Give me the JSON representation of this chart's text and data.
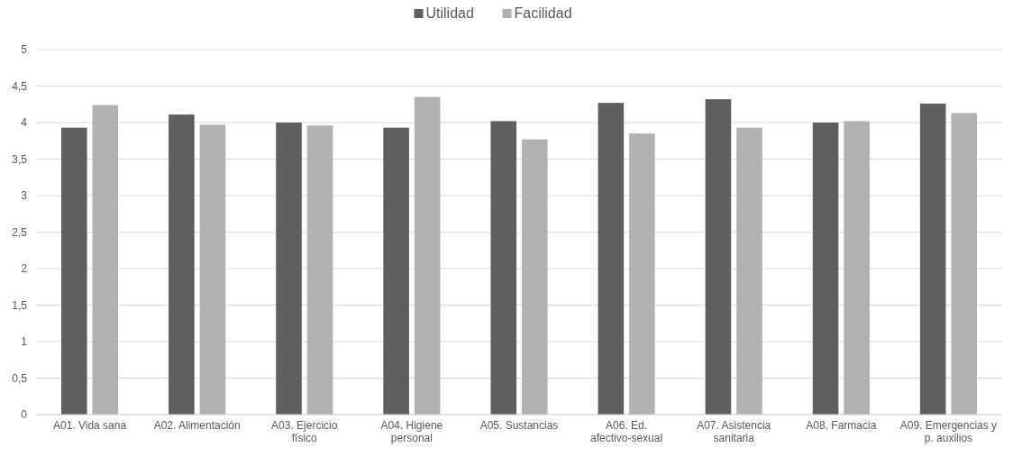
{
  "chart_data": {
    "type": "bar",
    "categories": [
      "A01. Vida sana",
      "A02. Alimentación",
      "A03. Ejercicio físico",
      "A04. Higiene personal",
      "A05. Sustancias",
      "A06. Ed. afectivo-sexual",
      "A07. Asistencia sanitaria",
      "A08. Farmacia",
      "A09. Emergencias y p. auxilios"
    ],
    "series": [
      {
        "name": "Utilidad",
        "color": "#5f5f5f",
        "values": [
          3.93,
          4.11,
          4.0,
          3.93,
          4.02,
          4.27,
          4.32,
          4.0,
          4.26
        ]
      },
      {
        "name": "Facilidad",
        "color": "#b1b1b1",
        "values": [
          4.24,
          3.97,
          3.96,
          4.35,
          3.77,
          3.85,
          3.93,
          4.02,
          4.13
        ]
      }
    ],
    "ylim": [
      0,
      5
    ],
    "yticks": [
      0,
      {
        "value": 0.5,
        "label": "0,5"
      },
      1,
      {
        "value": 1.5,
        "label": "1,5"
      },
      2,
      {
        "value": 2.5,
        "label": "2,5"
      },
      3,
      {
        "value": 3.5,
        "label": "3,5"
      },
      4,
      {
        "value": 4.5,
        "label": "4,5"
      },
      5
    ],
    "grid": "y",
    "legend": "top"
  }
}
